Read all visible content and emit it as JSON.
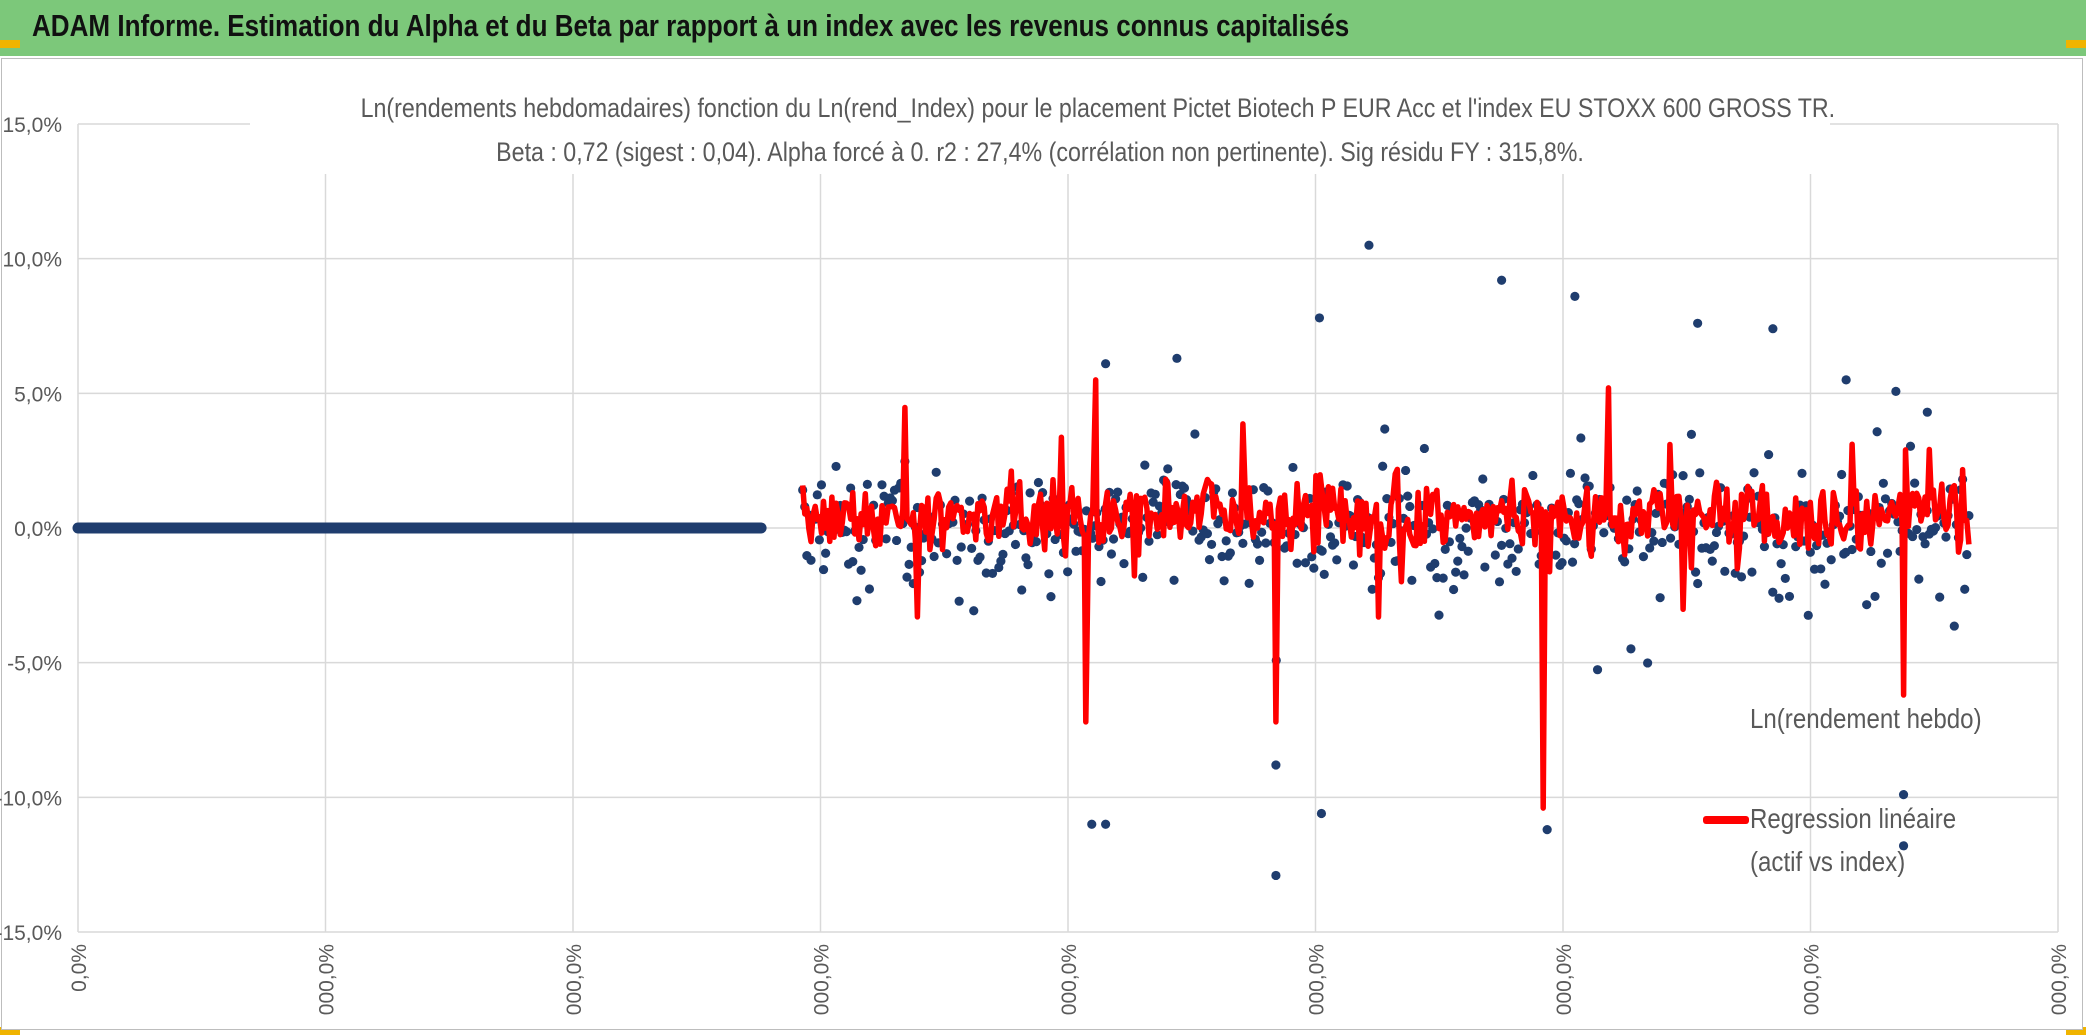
{
  "header": {
    "title": "ADAM Informe. Estimation du Alpha et du Beta par rapport à un index avec les revenus connus capitalisés"
  },
  "colors": {
    "header_bg": "#7cc87a",
    "scatter": "#1f3d6e",
    "regression": "#ff0000",
    "grid": "#d9d9d9",
    "text": "#595959"
  },
  "chart_data": {
    "type": "scatter",
    "title_line1": "Ln(rendements hebdomadaires) fonction du Ln(rend_Index) pour le placement Pictet Biotech P EUR Acc et l'index EU STOXX 600 GROSS TR.",
    "title_line2": "Beta : 0,72 (sigest : 0,04). Alpha forcé à 0. r2 : 27,4% (corrélation non pertinente). Sig résidu FY : 315,8%.",
    "xlabel": "",
    "ylabel": "",
    "ylim": [
      -0.15,
      0.15
    ],
    "y_ticks": [
      "15,0%",
      "10,0%",
      "5,0%",
      "0,0%",
      "-5,0%",
      "-10,0%",
      "-15,0%"
    ],
    "x_ticks": [
      "0,0%",
      "000,0%",
      "000,0%",
      "000,0%",
      "000,0%",
      "000,0%",
      "000,0%",
      "000,0%",
      "000,0%"
    ],
    "grid": true,
    "legend_position": "right",
    "series": [
      {
        "name": "Ln(rendement hebdo)",
        "kind": "scatter",
        "notable_points": [
          {
            "x": 0.519,
            "y": 0.061
          },
          {
            "x": 0.512,
            "y": -0.11
          },
          {
            "x": 0.519,
            "y": -0.11
          },
          {
            "x": 0.605,
            "y": -0.129
          },
          {
            "x": 0.605,
            "y": -0.088
          },
          {
            "x": 0.652,
            "y": 0.105
          },
          {
            "x": 0.719,
            "y": 0.092
          },
          {
            "x": 0.756,
            "y": 0.086
          },
          {
            "x": 0.742,
            "y": -0.112
          },
          {
            "x": 0.628,
            "y": -0.106
          },
          {
            "x": 0.818,
            "y": 0.076
          },
          {
            "x": 0.856,
            "y": 0.074
          },
          {
            "x": 0.922,
            "y": -0.099
          },
          {
            "x": 0.922,
            "y": -0.118
          },
          {
            "x": 0.893,
            "y": 0.055
          },
          {
            "x": 0.934,
            "y": 0.043
          },
          {
            "x": 0.555,
            "y": 0.063
          },
          {
            "x": 0.627,
            "y": 0.078
          }
        ]
      },
      {
        "name": "Regression linéaire (actif vs index)",
        "kind": "line",
        "notable_points": [
          {
            "x": 0.74,
            "y": -0.104
          },
          {
            "x": 0.605,
            "y": -0.072
          },
          {
            "x": 0.514,
            "y": 0.055
          },
          {
            "x": 0.509,
            "y": -0.072
          },
          {
            "x": 0.922,
            "y": -0.062
          },
          {
            "x": 0.773,
            "y": 0.052
          },
          {
            "x": 0.923,
            "y": 0.029
          },
          {
            "x": 0.804,
            "y": 0.031
          }
        ]
      }
    ],
    "flat_segment": {
      "x_start": 0.0,
      "x_end": 0.345,
      "y": 0.0
    }
  },
  "legend": {
    "scatter_label": "Ln(rendement hebdo)",
    "line_label_1": "Regression linéaire",
    "line_label_2": "(actif vs index)"
  }
}
